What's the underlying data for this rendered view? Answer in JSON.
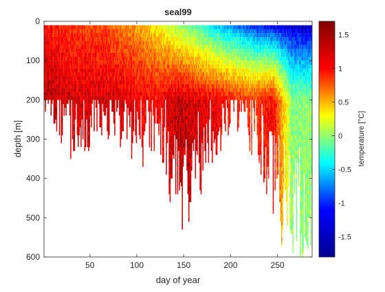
{
  "chart_data": {
    "type": "heatmap",
    "title": "seal99",
    "xlabel": "day of year",
    "ylabel": "depth [m]",
    "colorbar_label": "temperature [°C]",
    "xlim": [
      1,
      287
    ],
    "ylim": [
      600,
      0
    ],
    "y_reversed": true,
    "x_ticks": [
      50,
      100,
      150,
      200,
      250
    ],
    "x_tick_labels": [
      "50",
      "100",
      "150",
      "200",
      "250"
    ],
    "y_ticks": [
      0,
      100,
      200,
      300,
      400,
      500,
      600
    ],
    "y_tick_labels": [
      "0",
      "100",
      "200",
      "300",
      "400",
      "500",
      "600"
    ],
    "colorbar_ticks": [
      -1.5,
      -1,
      -0.5,
      0,
      0.5,
      1,
      1.5
    ],
    "colorbar_tick_labels": [
      "-1.5",
      "-1",
      "-0.5",
      "0",
      "0.5",
      "1",
      "1.5"
    ],
    "clim": [
      -1.8,
      1.7
    ],
    "colormap": "jet",
    "grid": false,
    "colormap_stops": [
      "#00008f",
      "#0000ff",
      "#00ffff",
      "#ffff00",
      "#ff0000",
      "#800000"
    ],
    "depth_profiles": [
      {
        "day": 5,
        "max_depth": 200,
        "surface_temp": 1.2,
        "deep_temp": 1.5
      },
      {
        "day": 25,
        "max_depth": 300,
        "surface_temp": 1.1,
        "deep_temp": 1.4
      },
      {
        "day": 45,
        "max_depth": 300,
        "surface_temp": 1.0,
        "deep_temp": 1.4
      },
      {
        "day": 65,
        "max_depth": 280,
        "surface_temp": 1.0,
        "deep_temp": 1.4
      },
      {
        "day": 85,
        "max_depth": 280,
        "surface_temp": 0.8,
        "deep_temp": 1.4
      },
      {
        "day": 105,
        "max_depth": 320,
        "surface_temp": 0.6,
        "deep_temp": 1.3
      },
      {
        "day": 125,
        "max_depth": 300,
        "surface_temp": 0.3,
        "deep_temp": 1.3
      },
      {
        "day": 145,
        "max_depth": 500,
        "surface_temp": -0.1,
        "deep_temp": 1.5
      },
      {
        "day": 165,
        "max_depth": 400,
        "surface_temp": -0.4,
        "deep_temp": 1.4
      },
      {
        "day": 185,
        "max_depth": 300,
        "surface_temp": -0.8,
        "deep_temp": 1.3
      },
      {
        "day": 205,
        "max_depth": 250,
        "surface_temp": -1.1,
        "deep_temp": 1.2
      },
      {
        "day": 225,
        "max_depth": 300,
        "surface_temp": -1.4,
        "deep_temp": 1.1
      },
      {
        "day": 245,
        "max_depth": 450,
        "surface_temp": -1.6,
        "deep_temp": 1.3
      },
      {
        "day": 265,
        "max_depth": 550,
        "surface_temp": -1.7,
        "deep_temp": 0.0
      },
      {
        "day": 285,
        "max_depth": 560,
        "surface_temp": -1.7,
        "deep_temp": 0.0
      }
    ]
  }
}
